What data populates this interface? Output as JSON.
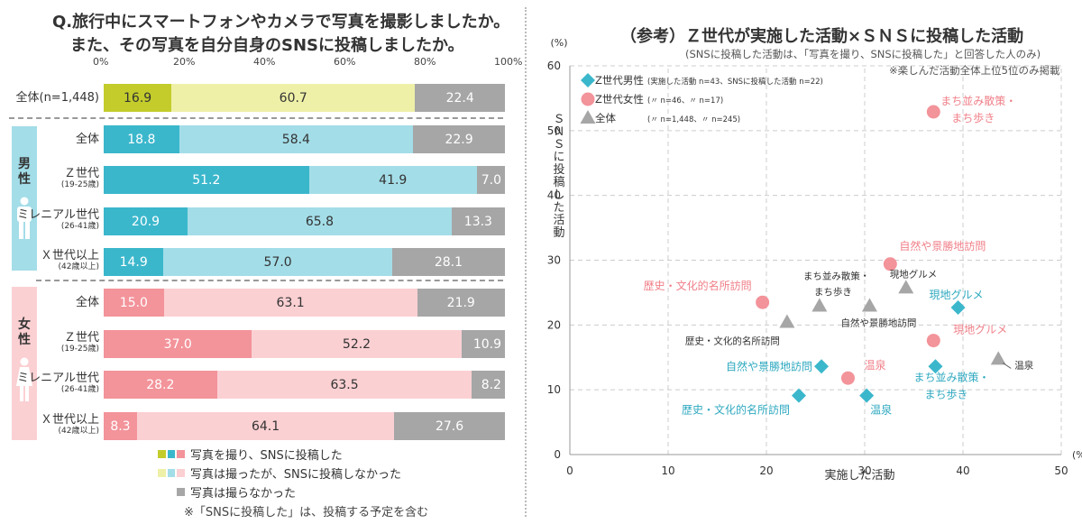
{
  "left": {
    "title_line1": "Q.旅行中にスマートフォンやカメラで写真を撮影しましたか。",
    "title_line2": "また、その写真を自分自身のSNSに投稿しましたか。",
    "percent_ticks": [
      "0%",
      "20%",
      "40%",
      "60%",
      "80%",
      "100%"
    ],
    "male_label": "男性",
    "female_label": "女性",
    "rows": [
      {
        "label": "全体(n=1,448)",
        "sub": "",
        "group": "total",
        "values": [
          16.9,
          60.7,
          22.4
        ],
        "texts": [
          "16.9",
          "60.7",
          "22.4"
        ]
      },
      {
        "label": "全体",
        "sub": "",
        "group": "male",
        "values": [
          18.8,
          58.4,
          22.9
        ],
        "texts": [
          "18.8",
          "58.4",
          "22.9"
        ]
      },
      {
        "label": "Ｚ世代",
        "sub": "(19-25歳)",
        "group": "male",
        "values": [
          51.2,
          41.9,
          7.0
        ],
        "texts": [
          "51.2",
          "41.9",
          "7.0"
        ]
      },
      {
        "label": "ミレニアル世代",
        "sub": "(26-41歳)",
        "group": "male",
        "values": [
          20.9,
          65.8,
          13.3
        ],
        "texts": [
          "20.9",
          "65.8",
          "13.3"
        ]
      },
      {
        "label": "Ｘ世代以上",
        "sub": "(42歳以上)",
        "group": "male",
        "values": [
          14.9,
          57.0,
          28.1
        ],
        "texts": [
          "14.9",
          "57.0",
          "28.1"
        ]
      },
      {
        "label": "全体",
        "sub": "",
        "group": "female",
        "values": [
          15.0,
          63.1,
          21.9
        ],
        "texts": [
          "15.0",
          "63.1",
          "21.9"
        ]
      },
      {
        "label": "Ｚ世代",
        "sub": "(19-25歳)",
        "group": "female",
        "values": [
          37.0,
          52.2,
          10.9
        ],
        "texts": [
          "37.0",
          "52.2",
          "10.9"
        ]
      },
      {
        "label": "ミレニアル世代",
        "sub": "(26-41歳)",
        "group": "female",
        "values": [
          28.2,
          63.5,
          8.2
        ],
        "texts": [
          "28.2",
          "63.5",
          "8.2"
        ]
      },
      {
        "label": "Ｘ世代以上",
        "sub": "(42歳以上)",
        "group": "female",
        "values": [
          8.3,
          64.1,
          27.6
        ],
        "texts": [
          "8.3",
          "64.1",
          "27.6"
        ]
      }
    ],
    "colors": {
      "total": [
        "#c3cc2b",
        "#eef0a8",
        "#a6a6a6"
      ],
      "male": [
        "#3bb7cc",
        "#a3dde8",
        "#a6a6a6"
      ],
      "female": [
        "#f3939a",
        "#fbd0d3",
        "#a6a6a6"
      ],
      "male_panel": "#a3dde8",
      "female_panel": "#fbd0d3"
    },
    "legend": [
      {
        "text": "写真を撮り、SNSに投稿した",
        "swatches": [
          "#c3cc2b",
          "#3bb7cc",
          "#f3939a"
        ]
      },
      {
        "text": "写真は撮ったが、SNSに投稿しなかった",
        "swatches": [
          "#eef0a8",
          "#a3dde8",
          "#fbd0d3"
        ]
      },
      {
        "text": "写真は撮らなかった",
        "swatches": [
          "#a6a6a6"
        ]
      }
    ],
    "footnote": "※「SNSに投稿した」は、投稿する予定を含む"
  },
  "right": {
    "title": "（参考）Ｚ世代が実施した活動×ＳＮＳに投稿した活動",
    "subtitle": "(SNSに投稿した活動は、「写真を撮り、SNSに投稿した」と回答した人のみ)",
    "note": "※楽しんだ活動全体上位5位のみ掲載",
    "y_unit": "(%)",
    "x_unit": "(%)",
    "ylabel": "ＳＮＳに投稿した活動",
    "xlabel": "実施した活動",
    "legend": [
      {
        "name": "Z世代男性",
        "detail": "(実施した活動 n=43、SNSに投稿した活動 n=22)",
        "color": "#3bb7cc"
      },
      {
        "name": "Z世代女性",
        "detail": "(〃 n=46、〃 n=17)",
        "color": "#f3939a"
      },
      {
        "name": "全体",
        "detail": "(〃 n=1,448、〃 n=245)",
        "color": "#a6a6a6"
      }
    ]
  },
  "chart_data": {
    "type": "scatter",
    "title": "（参考）Ｚ世代が実施した活動×ＳＮＳに投稿した活動",
    "xlabel": "実施した活動",
    "ylabel": "ＳＮＳに投稿した活動",
    "xlim": [
      0,
      50
    ],
    "ylim": [
      0,
      60
    ],
    "x_ticks": [
      0,
      10,
      20,
      30,
      40,
      50
    ],
    "y_ticks": [
      0,
      10,
      20,
      30,
      40,
      50,
      60
    ],
    "grid": true,
    "series": [
      {
        "name": "Z世代男性",
        "marker": "diamond",
        "color": "#3bb7cc",
        "points": [
          {
            "x": 39.5,
            "y": 22.7,
            "label": "現地グルメ"
          },
          {
            "x": 25.6,
            "y": 13.6,
            "label": "自然や景勝地訪問"
          },
          {
            "x": 37.2,
            "y": 13.6,
            "label": "まち並み散策・まち歩き"
          },
          {
            "x": 23.3,
            "y": 9.1,
            "label": "歴史・文化的名所訪問"
          },
          {
            "x": 30.2,
            "y": 9.1,
            "label": "温泉"
          }
        ]
      },
      {
        "name": "Z世代女性",
        "marker": "circle",
        "color": "#f3939a",
        "points": [
          {
            "x": 37.0,
            "y": 52.9,
            "label": "まち並み散策・まち歩き"
          },
          {
            "x": 32.6,
            "y": 29.4,
            "label": "自然や景勝地訪問"
          },
          {
            "x": 19.6,
            "y": 23.5,
            "label": "歴史・文化的名所訪問"
          },
          {
            "x": 37.0,
            "y": 17.6,
            "label": "現地グルメ"
          },
          {
            "x": 28.3,
            "y": 11.8,
            "label": "温泉"
          }
        ]
      },
      {
        "name": "全体",
        "marker": "triangle",
        "color": "#a6a6a6",
        "points": [
          {
            "x": 25.4,
            "y": 22.9,
            "label": "まち並み散策・まち歩き"
          },
          {
            "x": 34.2,
            "y": 25.7,
            "label": "現地グルメ"
          },
          {
            "x": 30.5,
            "y": 22.9,
            "label": "自然や景勝地訪問"
          },
          {
            "x": 22.1,
            "y": 20.4,
            "label": "歴史・文化的名所訪問"
          },
          {
            "x": 43.6,
            "y": 14.7,
            "label": "温泉"
          }
        ]
      }
    ]
  }
}
